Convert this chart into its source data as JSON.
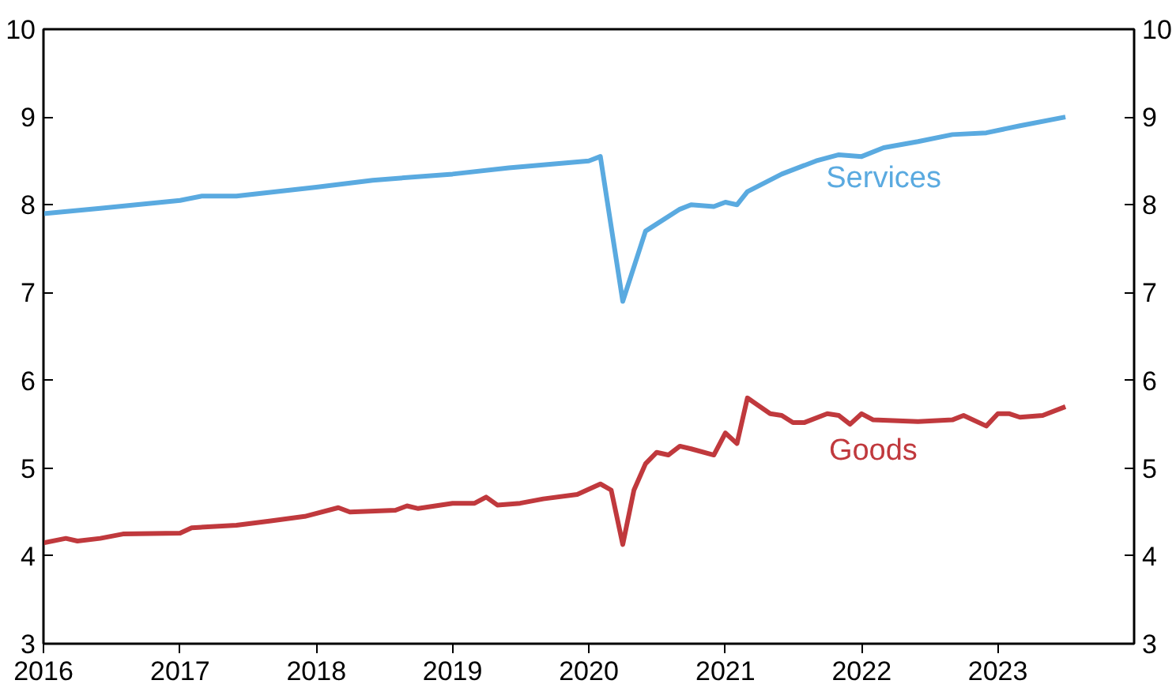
{
  "chart_data": {
    "type": "line",
    "xlim": [
      "2016-01",
      "2024-01"
    ],
    "xticks": [
      "2016",
      "2017",
      "2018",
      "2019",
      "2020",
      "2021",
      "2022",
      "2023"
    ],
    "ylim": [
      3,
      10
    ],
    "yticks": [
      3,
      4,
      5,
      6,
      7,
      8,
      9,
      10
    ],
    "y2lim": [
      3,
      10
    ],
    "y2ticks": [
      3,
      4,
      5,
      6,
      7,
      8,
      9,
      10
    ],
    "grid": false,
    "series": [
      {
        "name": "Services",
        "color": "#5aaae0",
        "x": [
          "2016-01",
          "2016-06",
          "2017-01",
          "2017-03",
          "2017-06",
          "2018-01",
          "2018-06",
          "2019-01",
          "2019-06",
          "2020-01",
          "2020-02",
          "2020-03",
          "2020-04",
          "2020-06",
          "2020-09",
          "2020-10",
          "2020-12",
          "2021-01",
          "2021-02",
          "2021-03",
          "2021-06",
          "2021-09",
          "2021-11",
          "2022-01",
          "2022-03",
          "2022-06",
          "2022-09",
          "2022-12",
          "2023-03",
          "2023-07"
        ],
        "values": [
          7.9,
          7.96,
          8.05,
          8.1,
          8.1,
          8.2,
          8.28,
          8.35,
          8.42,
          8.5,
          8.55,
          7.75,
          6.9,
          7.7,
          7.95,
          8.0,
          7.98,
          8.03,
          8.0,
          8.15,
          8.35,
          8.5,
          8.57,
          8.55,
          8.65,
          8.72,
          8.8,
          8.82,
          8.9,
          9.0
        ]
      },
      {
        "name": "Goods",
        "color": "#c0393d",
        "x": [
          "2016-01",
          "2016-03",
          "2016-04",
          "2016-06",
          "2016-08",
          "2017-01",
          "2017-02",
          "2017-06",
          "2017-09",
          "2017-12",
          "2018-03",
          "2018-04",
          "2018-08",
          "2018-09",
          "2018-10",
          "2019-01",
          "2019-03",
          "2019-04",
          "2019-05",
          "2019-07",
          "2019-09",
          "2019-12",
          "2020-02",
          "2020-03",
          "2020-04",
          "2020-05",
          "2020-06",
          "2020-07",
          "2020-08",
          "2020-09",
          "2020-10",
          "2020-12",
          "2021-01",
          "2021-02",
          "2021-03",
          "2021-05",
          "2021-06",
          "2021-07",
          "2021-08",
          "2021-10",
          "2021-11",
          "2021-12",
          "2022-01",
          "2022-02",
          "2022-06",
          "2022-09",
          "2022-10",
          "2022-12",
          "2023-01",
          "2023-02",
          "2023-03",
          "2023-05",
          "2023-07"
        ],
        "values": [
          4.15,
          4.2,
          4.17,
          4.2,
          4.25,
          4.26,
          4.32,
          4.35,
          4.4,
          4.45,
          4.55,
          4.5,
          4.52,
          4.57,
          4.54,
          4.6,
          4.6,
          4.67,
          4.58,
          4.6,
          4.65,
          4.7,
          4.82,
          4.75,
          4.13,
          4.75,
          5.05,
          5.18,
          5.15,
          5.25,
          5.22,
          5.15,
          5.4,
          5.28,
          5.8,
          5.62,
          5.6,
          5.52,
          5.52,
          5.62,
          5.6,
          5.5,
          5.62,
          5.55,
          5.53,
          5.55,
          5.6,
          5.48,
          5.62,
          5.62,
          5.58,
          5.6,
          5.7
        ]
      }
    ]
  }
}
